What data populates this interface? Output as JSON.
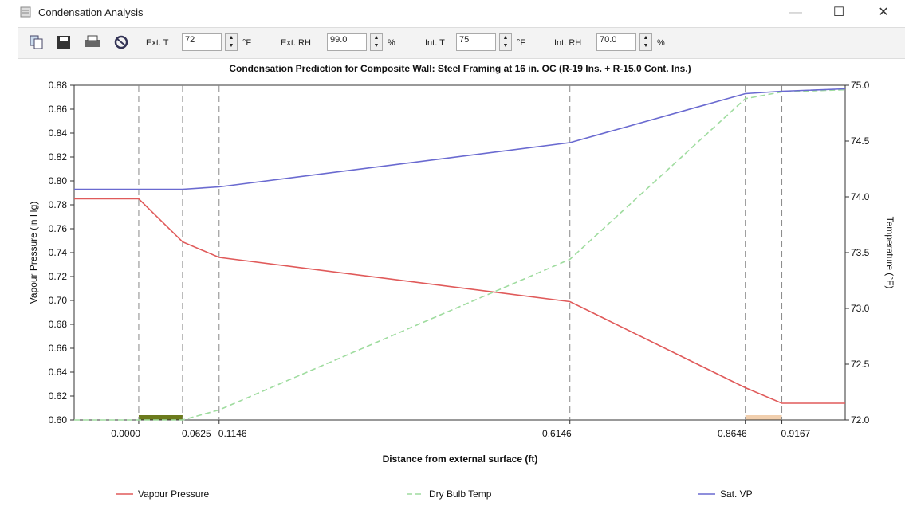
{
  "window": {
    "title": "Condensation Analysis"
  },
  "toolbar": {
    "fields": [
      {
        "label": "Ext. T",
        "value": "72",
        "unit": "°F"
      },
      {
        "label": "Ext. RH",
        "value": "99.0",
        "unit": "%"
      },
      {
        "label": "Int. T",
        "value": "75",
        "unit": "°F"
      },
      {
        "label": "Int. RH",
        "value": "70.0",
        "unit": "%"
      }
    ]
  },
  "chart_data": {
    "type": "line",
    "title": "Condensation Prediction for Composite Wall:  Steel Framing at 16 in. OC (R-19 Ins. + R-15.0 Cont. Ins.)",
    "x_label": "Distance from external surface (ft)",
    "y_label": "Vapour Pressure (in Hg)",
    "y2_label": "Temperature (°F)",
    "xlim": [
      -0.092,
      1.007
    ],
    "ylim": [
      0.6,
      0.88
    ],
    "y2lim": [
      72,
      75
    ],
    "xticks": [
      {
        "value": 0,
        "label": "0.0000"
      },
      0.0625,
      0.1146,
      0.6146,
      0.8646,
      0.9167
    ],
    "yticks": [
      {
        "value": 0.6,
        "label": "0.60"
      },
      0.62,
      0.64,
      0.66,
      0.68,
      {
        "value": 0.7,
        "label": "0.70"
      },
      0.72,
      0.74,
      0.76,
      0.78,
      {
        "value": 0.8,
        "label": "0.80"
      },
      0.82,
      0.84,
      0.86,
      0.88
    ],
    "y2ticks": [
      {
        "value": 72,
        "label": "72.0"
      },
      72.5,
      {
        "value": 73,
        "label": "73.0"
      },
      73.5,
      {
        "value": 74,
        "label": "74.0"
      },
      74.5,
      {
        "value": 75,
        "label": "75.0"
      }
    ],
    "grid": true,
    "bands": [
      {
        "from": 0,
        "to": 0.0625,
        "color": "#6b7a1c"
      },
      {
        "from": 0.8646,
        "to": 0.9167,
        "color": "#f1cfae"
      }
    ],
    "series": [
      {
        "name": "Vapour Pressure",
        "color": "#e05a5a",
        "dash": false,
        "x": [
          -0.092,
          0,
          0.0625,
          0.1146,
          0.6146,
          0.8646,
          0.9167,
          1.007
        ],
        "values": [
          0.785,
          0.785,
          0.749,
          0.736,
          0.699,
          0.627,
          0.614,
          0.614
        ]
      },
      {
        "name": "Dry Bulb Temp",
        "color": "#9fdc9f",
        "dash": true,
        "axis": "y2",
        "x": [
          -0.092,
          0,
          0.0625,
          0.1146,
          0.6146,
          0.8646,
          0.9167,
          1.007
        ],
        "values": [
          72.0,
          72.0,
          72.0,
          72.09,
          73.44,
          74.88,
          74.94,
          74.96
        ]
      },
      {
        "name": "Sat. VP",
        "color": "#6a6ad0",
        "dash": false,
        "x": [
          -0.092,
          0,
          0.0625,
          0.1146,
          0.6146,
          0.8646,
          0.9167,
          1.007
        ],
        "values": [
          0.793,
          0.793,
          0.793,
          0.795,
          0.832,
          0.873,
          0.875,
          0.877
        ]
      }
    ]
  }
}
